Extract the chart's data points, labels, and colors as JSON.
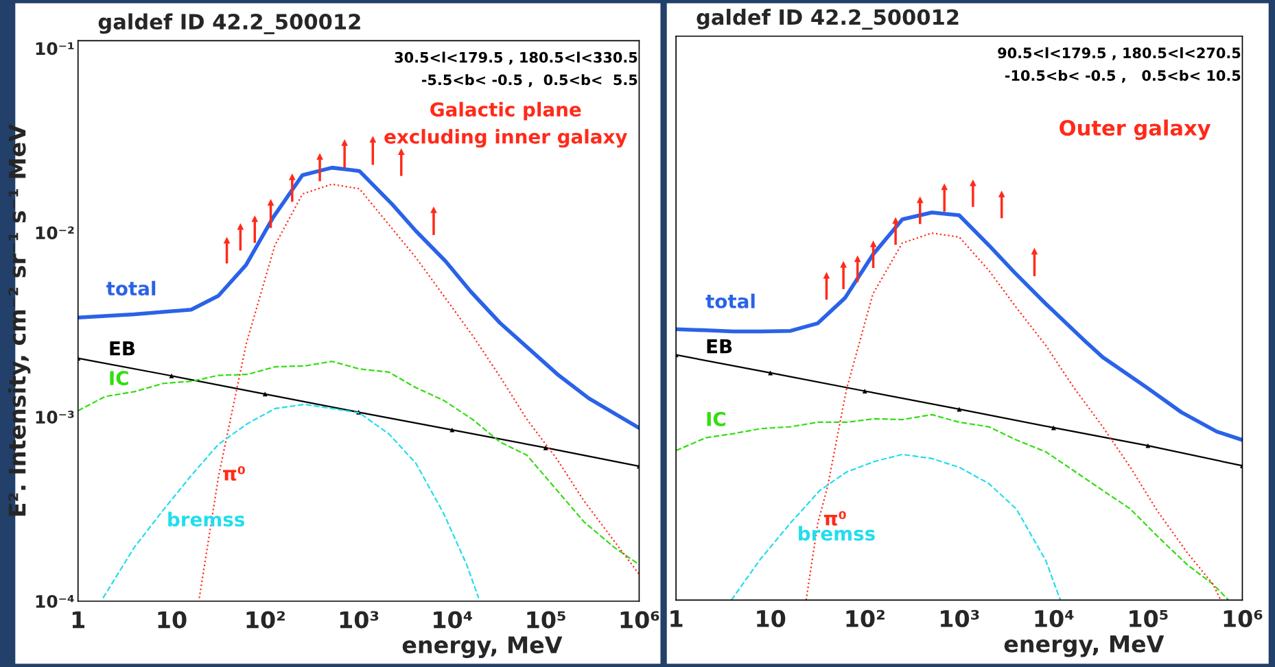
{
  "chart_data": [
    {
      "type": "line",
      "title": "galdef ID 42.2_500012",
      "xlabel": "energy, MeV",
      "ylabel": "E². Intensity, cm⁻² sr⁻¹ s⁻¹ MeV",
      "log": "xy",
      "grid": false,
      "xlim": [
        1,
        1000000
      ],
      "ylim": [
        0.0001,
        0.11
      ],
      "xticks": [
        1,
        10,
        {
          "value": 100,
          "label": "10²"
        },
        {
          "value": 1000,
          "label": "10³"
        },
        {
          "value": 10000,
          "label": "10⁴"
        },
        {
          "value": 100000,
          "label": "10⁵"
        },
        {
          "value": 1000000,
          "label": "10⁶"
        }
      ],
      "yticks": [
        {
          "value": 0.0001,
          "label": "10⁻⁴"
        },
        {
          "value": 0.001,
          "label": "10⁻³"
        },
        {
          "value": 0.01,
          "label": "10⁻²"
        },
        {
          "value": 0.1,
          "label": "10⁻¹"
        }
      ],
      "annotations": [
        "30.5<l<179.5 , 180.5<l<330.5",
        "-5.5<b< -0.5 ,  0.5<b<  5.5",
        "Galactic plane\nexcluding inner galaxy"
      ],
      "series": [
        {
          "name": "total",
          "type": "line",
          "color": "#2a62e8",
          "line_style": "solid",
          "x": [
            1,
            4,
            16.2,
            31.7,
            62.5,
            122,
            251,
            520,
            1020,
            2300,
            4100,
            8500,
            15800,
            32600,
            138000,
            290000,
            1000000
          ],
          "values": [
            0.00346,
            0.0036,
            0.00382,
            0.00454,
            0.00667,
            0.0121,
            0.0205,
            0.0225,
            0.0216,
            0.0142,
            0.0102,
            0.007,
            0.00479,
            0.00323,
            0.00168,
            0.00126,
            0.00087
          ]
        },
        {
          "name": "EB",
          "color": "#000000",
          "line_style": "solid",
          "marker": "triangle",
          "x": [
            1,
            10,
            100,
            1000,
            10000,
            100000,
            1000000
          ],
          "values": [
            0.00208,
            0.00167,
            0.00133,
            0.00106,
            0.00085,
            0.00068,
            0.00054
          ]
        },
        {
          "name": "IC",
          "color": "#33dd11",
          "line_style": "dashed",
          "x": [
            1,
            1.95,
            4,
            8.2,
            16.2,
            31.7,
            65,
            128,
            265,
            520,
            1020,
            2100,
            4100,
            8100,
            16500,
            32600,
            63000,
            132000,
            256000,
            540000,
            1000000
          ],
          "values": [
            0.00108,
            0.00129,
            0.00137,
            0.00152,
            0.00156,
            0.00168,
            0.0017,
            0.00187,
            0.00189,
            0.002,
            0.00182,
            0.00175,
            0.00144,
            0.00123,
            0.00097,
            0.00073,
            0.00062,
            0.0004,
            0.00027,
            0.000196,
            0.000158
          ]
        },
        {
          "name": "π⁰",
          "color": "#ff2a1a",
          "line_style": "dotted",
          "x": [
            19.8,
            31.9,
            63,
            127,
            251,
            516,
            1020,
            4140,
            16500,
            32600,
            63000,
            132000,
            257000,
            1000000
          ],
          "values": [
            0.000104,
            0.00048,
            0.0025,
            0.0085,
            0.0162,
            0.0183,
            0.0173,
            0.00727,
            0.00277,
            0.00165,
            0.00097,
            0.00059,
            0.00035,
            0.00014
          ]
        },
        {
          "name": "bremss",
          "color": "#22ddee",
          "line_style": "dashed",
          "x": [
            1.85,
            4,
            7.9,
            16.2,
            31.7,
            65,
            128,
            265,
            520,
            1020,
            2100,
            4100,
            8100,
            14300,
            19200
          ],
          "values": [
            0.000104,
            0.000196,
            0.000306,
            0.00048,
            0.00071,
            0.00092,
            0.00111,
            0.00117,
            0.00111,
            0.00105,
            0.00081,
            0.00056,
            0.0003,
            0.000158,
            0.000104
          ]
        },
        {
          "type": "scatter",
          "color": "#ff2a1a",
          "marker": "triangle",
          "x": [
            39,
            54.5,
            77.6,
            115,
            195,
            385,
            708,
            1420,
            2860,
            6350
          ],
          "values": [
            0.0091,
            0.0108,
            0.0119,
            0.0146,
            0.0201,
            0.0259,
            0.0308,
            0.0321,
            0.0275,
            0.0133
          ],
          "errors": [
            [
              0.0068,
              0.0091
            ],
            [
              0.008,
              0.0108
            ],
            [
              0.0088,
              0.0119
            ],
            [
              0.0106,
              0.0146
            ],
            [
              0.0147,
              0.0201
            ],
            [
              0.019,
              0.0259
            ],
            [
              0.0225,
              0.0308
            ],
            [
              0.0233,
              0.0321
            ],
            [
              0.0203,
              0.0275
            ],
            [
              0.0097,
              0.0133
            ]
          ]
        }
      ]
    },
    {
      "type": "line",
      "title": "galdef ID 42.2_500012",
      "xlabel": "energy, MeV",
      "log": "xy",
      "grid": false,
      "tick_labels": "x",
      "xlim": [
        1,
        1000000
      ],
      "ylim": [
        0.0001,
        0.11
      ],
      "xticks": [
        1,
        10,
        {
          "value": 100,
          "label": "10²"
        },
        {
          "value": 1000,
          "label": "10³"
        },
        {
          "value": 10000,
          "label": "10⁴"
        },
        {
          "value": 100000,
          "label": "10⁵"
        },
        {
          "value": 1000000,
          "label": "10⁶"
        }
      ],
      "yticks": [
        {
          "value": 0.0001,
          "label": null
        },
        {
          "value": 0.001,
          "label": null
        },
        {
          "value": 0.01,
          "label": null
        },
        {
          "value": 0.1,
          "label": null
        }
      ],
      "annotations": [
        "90.5<l<179.5 , 180.5<l<270.5",
        "-10.5<b< -0.5 ,   0.5<b< 10.5",
        "Outer galaxy"
      ],
      "series": [
        {
          "name": "total",
          "type": "line",
          "color": "#2a62e8",
          "line_style": "solid",
          "x": [
            1,
            2.07,
            4.05,
            7.9,
            16.3,
            31.8,
            62,
            122,
            250,
            513,
            1000,
            2060,
            3850,
            8280,
            21600,
            33200,
            95300,
            226000,
            536000,
            1000000
          ],
          "values": [
            0.00289,
            0.00285,
            0.00281,
            0.00281,
            0.00283,
            0.00311,
            0.00427,
            0.0073,
            0.0113,
            0.0123,
            0.0119,
            0.0082,
            0.00585,
            0.00396,
            0.00249,
            0.00204,
            0.00141,
            0.00103,
            0.00081,
            0.00073
          ]
        },
        {
          "name": "EB",
          "color": "#000000",
          "line_style": "solid",
          "marker": "triangle",
          "x": [
            1,
            10,
            100,
            1000,
            10000,
            100000,
            1000000
          ],
          "values": [
            0.0021,
            0.00168,
            0.00134,
            0.00107,
            0.00085,
            0.00068,
            0.00053
          ]
        },
        {
          "name": "IC",
          "color": "#33dd11",
          "line_style": "dashed",
          "x": [
            1,
            2.07,
            4.05,
            7.9,
            16.3,
            31.8,
            64,
            128,
            250,
            513,
            1000,
            2060,
            4030,
            8280,
            16200,
            33200,
            65000,
            127000,
            261000,
            486000,
            713000
          ],
          "values": [
            0.00064,
            0.00075,
            0.00079,
            0.00084,
            0.00086,
            0.00091,
            0.00091,
            0.00095,
            0.00094,
            0.001,
            0.00091,
            0.00086,
            0.00073,
            0.00063,
            0.0005,
            0.00039,
            0.00031,
            0.00022,
            0.000155,
            0.000122,
            0.0001
          ]
        },
        {
          "name": "π⁰",
          "color": "#ff2a1a",
          "line_style": "dotted",
          "x": [
            23.9,
            31.8,
            40.4,
            64,
            122,
            250,
            513,
            1000,
            2060,
            4030,
            8280,
            16200,
            33200,
            65000,
            127000,
            261000,
            486000,
            590000
          ],
          "values": [
            0.0001,
            0.00026,
            0.00041,
            0.00137,
            0.00448,
            0.00843,
            0.00953,
            0.00908,
            0.006,
            0.00378,
            0.00236,
            0.00141,
            0.00086,
            0.00052,
            0.0003,
            0.00018,
            0.000122,
            0.0001
          ]
        },
        {
          "name": "bremss",
          "color": "#22ddee",
          "line_style": "dashed",
          "x": [
            3.86,
            7.9,
            16.3,
            33.4,
            64,
            128,
            250,
            513,
            1000,
            2060,
            4030,
            8280,
            11800
          ],
          "values": [
            0.0001,
            0.000167,
            0.00026,
            0.00039,
            0.00049,
            0.00056,
            0.00061,
            0.00058,
            0.00052,
            0.000425,
            0.00031,
            0.000163,
            0.0001
          ]
        },
        {
          "type": "scatter",
          "color": "#ff2a1a",
          "marker": "triangle",
          "x": [
            39.3,
            59.4,
            83.8,
            123,
            212,
            385,
            697,
            1400,
            2820,
            6270
          ],
          "values": [
            0.00564,
            0.00646,
            0.00694,
            0.00835,
            0.01114,
            0.01442,
            0.01694,
            0.0178,
            0.0155,
            0.00762
          ],
          "errors": [
            [
              0.00417,
              0.00564
            ],
            [
              0.00475,
              0.00646
            ],
            [
              0.00519,
              0.00694
            ],
            [
              0.00618,
              0.00835
            ],
            [
              0.00824,
              0.01114
            ],
            [
              0.01067,
              0.01442
            ],
            [
              0.01245,
              0.01694
            ],
            [
              0.0132,
              0.0178
            ],
            [
              0.01146,
              0.0155
            ],
            [
              0.00558,
              0.00762
            ]
          ]
        }
      ]
    }
  ]
}
